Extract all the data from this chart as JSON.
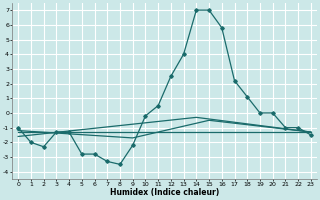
{
  "xlabel": "Humidex (Indice chaleur)",
  "xlim": [
    -0.5,
    23.5
  ],
  "ylim": [
    -4.5,
    7.5
  ],
  "xticks": [
    0,
    1,
    2,
    3,
    4,
    5,
    6,
    7,
    8,
    9,
    10,
    11,
    12,
    13,
    14,
    15,
    16,
    17,
    18,
    19,
    20,
    21,
    22,
    23
  ],
  "yticks": [
    -4,
    -3,
    -2,
    -1,
    0,
    1,
    2,
    3,
    4,
    5,
    6,
    7
  ],
  "bg_color": "#cce8e8",
  "grid_color": "#ffffff",
  "line_color": "#1a6b6b",
  "main_line": {
    "x": [
      0,
      1,
      2,
      3,
      4,
      5,
      6,
      7,
      8,
      9,
      10,
      11,
      12,
      13,
      14,
      15,
      16,
      17,
      18,
      19,
      20,
      21,
      22,
      23
    ],
    "y": [
      -1,
      -2,
      -2.3,
      -1.3,
      -1.3,
      -2.8,
      -2.8,
      -3.3,
      -3.5,
      -2.2,
      -0.2,
      0.5,
      2.5,
      4,
      7,
      7,
      5.8,
      2.2,
      1.1,
      0,
      0,
      -1,
      -1,
      -1.5
    ]
  },
  "trend_line1": {
    "x": [
      0,
      23
    ],
    "y": [
      -1.3,
      -1.3
    ]
  },
  "trend_line2": {
    "x": [
      0,
      14,
      23
    ],
    "y": [
      -1.6,
      -0.3,
      -1.3
    ]
  },
  "trend_line3": {
    "x": [
      0,
      9,
      15,
      23
    ],
    "y": [
      -1.2,
      -1.7,
      -0.5,
      -1.3
    ]
  }
}
